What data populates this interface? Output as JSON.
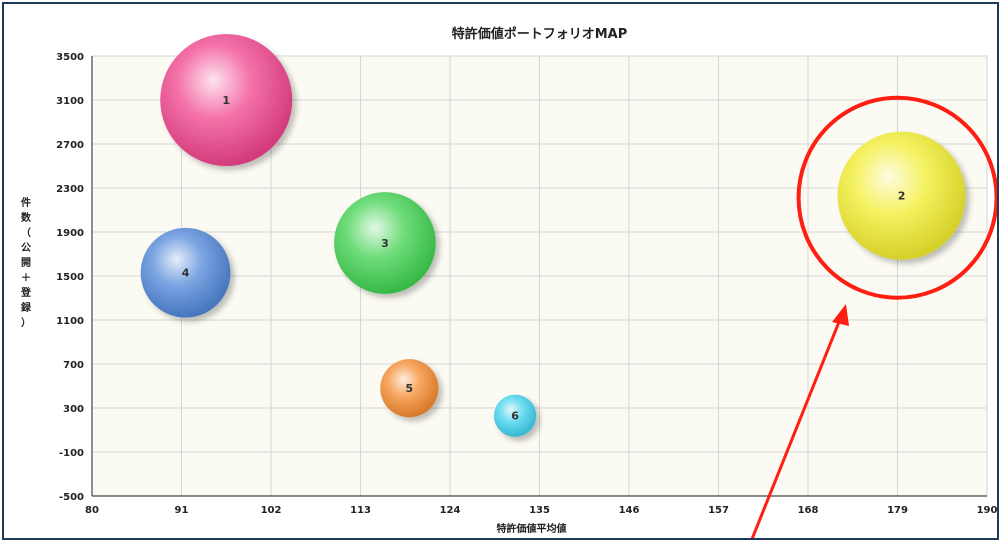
{
  "chart_data": {
    "type": "scatter",
    "title": "特許価値ポートフォリオMAP",
    "xlabel": "特許価値平均値",
    "ylabel": "件数（公開＋登録）",
    "xlim": [
      80,
      190
    ],
    "ylim": [
      -500,
      3500
    ],
    "xticks": [
      80,
      91,
      102,
      113,
      124,
      135,
      146,
      157,
      168,
      179,
      190
    ],
    "yticks": [
      3500,
      3100,
      2700,
      2300,
      1900,
      1500,
      1100,
      700,
      300,
      -100,
      -500
    ],
    "grid": true,
    "bubbles": [
      {
        "label": "1",
        "x": 96.5,
        "y": 3100,
        "size": 1.0,
        "color": "#f0438c"
      },
      {
        "label": "2",
        "x": 179.5,
        "y": 2230,
        "size": 0.97,
        "color": "#f2ee2e"
      },
      {
        "label": "3",
        "x": 116.0,
        "y": 1800,
        "size": 0.77,
        "color": "#3fd24f"
      },
      {
        "label": "4",
        "x": 91.5,
        "y": 1530,
        "size": 0.68,
        "color": "#4f86d8"
      },
      {
        "label": "5",
        "x": 119.0,
        "y": 480,
        "size": 0.44,
        "color": "#f48a2e"
      },
      {
        "label": "6",
        "x": 132.0,
        "y": 230,
        "size": 0.32,
        "color": "#3ed1ee"
      }
    ],
    "highlight": {
      "target": "2",
      "color": "#ff1e12"
    }
  }
}
